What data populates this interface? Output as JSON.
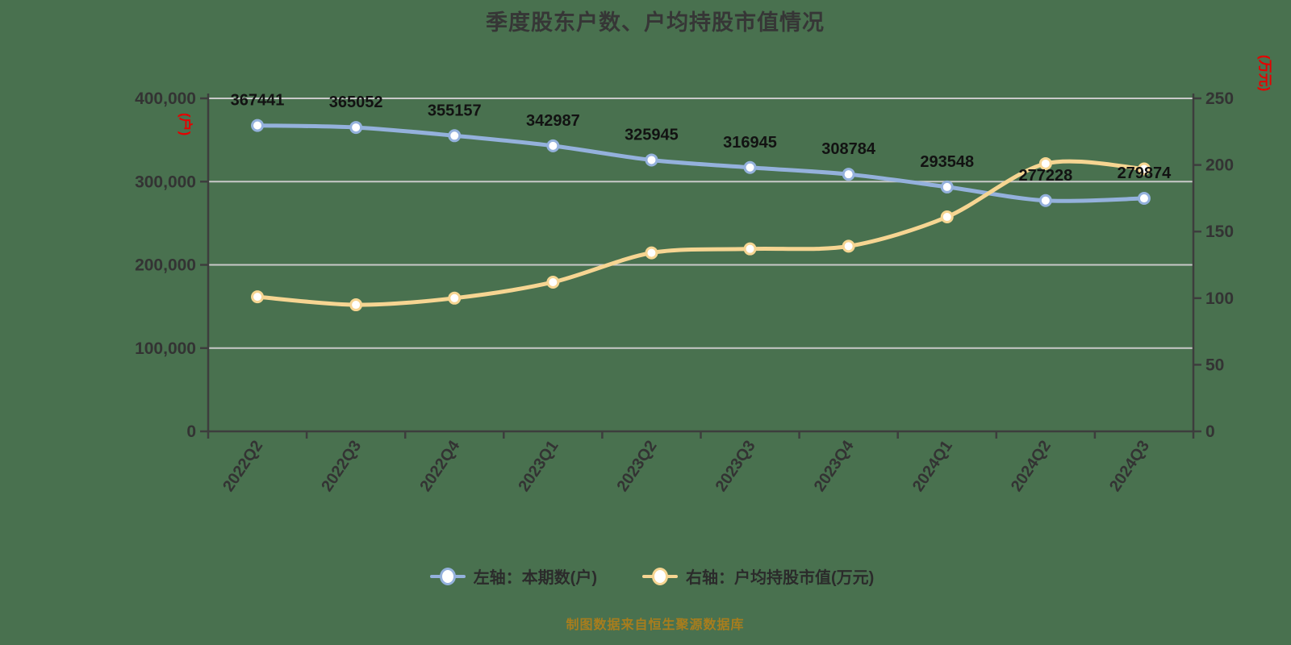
{
  "title": "季度股东户数、户均持股市值情况",
  "footer": "制图数据来自恒生聚源数据库",
  "legend": [
    {
      "label": "左轴：本期数(户)",
      "color": "#94b1dc"
    },
    {
      "label": "右轴：户均持股市值(万元)",
      "color": "#f6d592"
    }
  ],
  "colors": {
    "background": "#49714F",
    "axis_line": "#3d3d3d",
    "grid_line": "#c9c9c9",
    "tick_text": "#333333",
    "data_label": "#121212",
    "series_shareholders": "#94b1dc",
    "series_market_value": "#f6d592",
    "marker_fill": "#ffffff",
    "axis_unit": "#e60000",
    "footer_text": "#a87d1d",
    "title_text": "#363636"
  },
  "chart_data": {
    "type": "line",
    "title": "季度股东户数、户均持股市值情况",
    "categories": [
      "2022Q2",
      "2022Q3",
      "2022Q4",
      "2023Q1",
      "2023Q2",
      "2023Q3",
      "2023Q4",
      "2024Q1",
      "2024Q2",
      "2024Q3"
    ],
    "series": [
      {
        "name": "左轴：本期数(户)",
        "yaxis": "left",
        "color": "#94b1dc",
        "values": [
          367441,
          365052,
          355157,
          342987,
          325945,
          316945,
          308784,
          293548,
          277228,
          279874
        ],
        "show_labels": true
      },
      {
        "name": "右轴：户均持股市值(万元)",
        "yaxis": "right",
        "color": "#f6d592",
        "values": [
          101,
          95,
          100,
          112,
          134,
          137,
          139,
          161,
          201,
          197
        ],
        "show_labels": false
      }
    ],
    "left_axis": {
      "unit": "(户)",
      "min": 0,
      "max": 400000,
      "tick_values": [
        0,
        100000,
        200000,
        300000,
        400000
      ],
      "tick_labels": [
        "0",
        "100,000",
        "200,000",
        "300,000",
        "400,000"
      ]
    },
    "right_axis": {
      "unit": "(万元)",
      "min": 0,
      "max": 250,
      "tick_values": [
        0,
        50,
        100,
        150,
        200,
        250
      ],
      "tick_labels": [
        "0",
        "50",
        "100",
        "150",
        "200",
        "250"
      ]
    },
    "grid": true,
    "legend_position": "bottom",
    "x_label_rotation": -56
  }
}
